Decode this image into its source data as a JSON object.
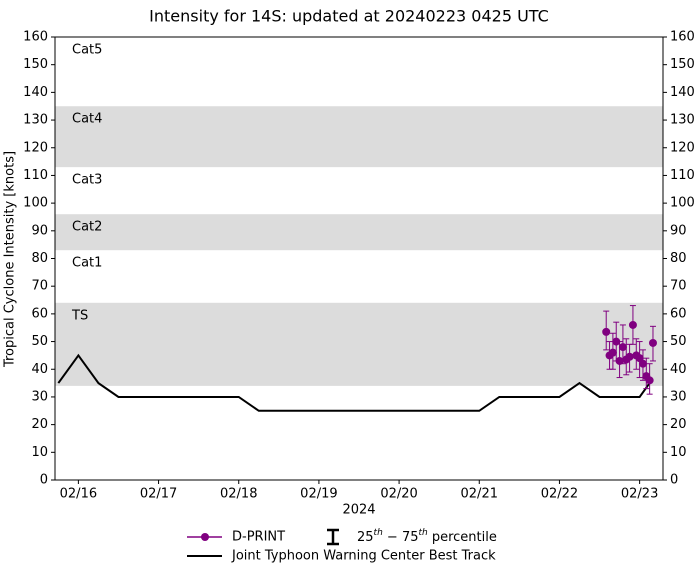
{
  "chart_data": {
    "type": "line",
    "title": "Intensity for 14S: updated at 20240223 0425 UTC",
    "y_label": "Tropical Cyclone Intensity [knots]",
    "x_label": "2024",
    "xlim": [
      "2024-02-15T17:00",
      "2024-02-23T07:00"
    ],
    "xticks": [
      {
        "value": "2024-02-16T00:00",
        "label": "02/16"
      },
      {
        "value": "2024-02-17T00:00",
        "label": "02/17"
      },
      {
        "value": "2024-02-18T00:00",
        "label": "02/18"
      },
      {
        "value": "2024-02-19T00:00",
        "label": "02/19"
      },
      {
        "value": "2024-02-20T00:00",
        "label": "02/20"
      },
      {
        "value": "2024-02-21T00:00",
        "label": "02/21"
      },
      {
        "value": "2024-02-22T00:00",
        "label": "02/22"
      },
      {
        "value": "2024-02-23T00:00",
        "label": "02/23"
      }
    ],
    "ylim": [
      0,
      160
    ],
    "yticks": [
      0,
      10,
      20,
      30,
      40,
      50,
      60,
      70,
      80,
      90,
      100,
      110,
      120,
      130,
      140,
      150,
      160
    ],
    "y2lim": [
      0,
      160
    ],
    "y2ticks": [
      0,
      10,
      20,
      30,
      40,
      50,
      60,
      70,
      80,
      90,
      100,
      110,
      120,
      130,
      140,
      150,
      160
    ],
    "bands": [
      {
        "label": "Cat5",
        "range": [
          135,
          160
        ],
        "shaded": false
      },
      {
        "label": "Cat4",
        "range": [
          113,
          135
        ],
        "shaded": true
      },
      {
        "label": "Cat3",
        "range": [
          96,
          113
        ],
        "shaded": false
      },
      {
        "label": "Cat2",
        "range": [
          83,
          96
        ],
        "shaded": true
      },
      {
        "label": "Cat1",
        "range": [
          64,
          83
        ],
        "shaded": false
      },
      {
        "label": "TS",
        "range": [
          34,
          64
        ],
        "shaded": true
      }
    ],
    "band_color": "#dcdcdc",
    "series": [
      {
        "name": "D-PRINT",
        "color": "#800080",
        "x": [
          "2024-02-22T14:00",
          "2024-02-22T15:00",
          "2024-02-22T16:00",
          "2024-02-22T17:00",
          "2024-02-22T18:00",
          "2024-02-22T19:00",
          "2024-02-22T20:00",
          "2024-02-22T21:00",
          "2024-02-22T22:00",
          "2024-02-22T23:00",
          "2024-02-23T00:00",
          "2024-02-23T01:00",
          "2024-02-23T02:00",
          "2024-02-23T03:00",
          "2024-02-23T04:00"
        ],
        "values": [
          53.5,
          45,
          46,
          50,
          43,
          48,
          43.5,
          44.5,
          56,
          45,
          44,
          42,
          37.5,
          36,
          49.5
        ],
        "low": [
          47,
          40,
          40,
          43,
          37,
          42,
          38,
          39,
          49,
          40,
          37,
          36,
          33,
          31,
          43
        ],
        "high": [
          61,
          50,
          53,
          57,
          50,
          56,
          51,
          49,
          63,
          51,
          50,
          47,
          44,
          42,
          55.5
        ]
      },
      {
        "name": "Joint Typhoon Warning Center Best Track",
        "color": "#000000",
        "x": [
          "2024-02-15T18:00",
          "2024-02-16T00:00",
          "2024-02-16T06:00",
          "2024-02-16T12:00",
          "2024-02-18T00:00",
          "2024-02-18T06:00",
          "2024-02-21T00:00",
          "2024-02-21T06:00",
          "2024-02-22T00:00",
          "2024-02-22T06:00",
          "2024-02-22T12:00",
          "2024-02-23T00:00",
          "2024-02-23T03:00"
        ],
        "values": [
          35,
          45,
          35,
          30,
          30,
          25,
          25,
          30,
          30,
          35,
          30,
          30,
          35
        ]
      }
    ],
    "errorbar_legend": [
      "25",
      "th",
      " − 75",
      "th",
      " percentile"
    ]
  }
}
